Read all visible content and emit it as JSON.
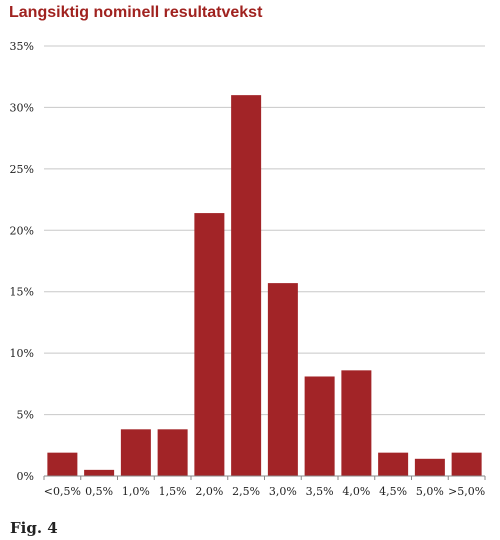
{
  "figure_label": "Fig. 4",
  "colors": {
    "bar": "#a22427",
    "title": "#a0221f",
    "grid": "#c8c8c8",
    "axis": "#888888"
  },
  "chart_data": {
    "type": "bar",
    "title": "Langsiktig nominell resultatvekst",
    "xlabel": "",
    "ylabel": "",
    "categories": [
      "<0,5%",
      "0,5%",
      "1,0%",
      "1,5%",
      "2,0%",
      "2,5%",
      "3,0%",
      "3,5%",
      "4,0%",
      "4,5%",
      "5,0%",
      ">5,0%"
    ],
    "values": [
      1.9,
      0.5,
      3.8,
      3.8,
      21.4,
      31.0,
      15.7,
      8.1,
      8.6,
      1.9,
      1.4,
      1.9
    ],
    "ylim": [
      0,
      35
    ],
    "yticks": [
      0,
      5,
      10,
      15,
      20,
      25,
      30,
      35
    ],
    "ytick_labels": [
      "0%",
      "5%",
      "10%",
      "15%",
      "20%",
      "25%",
      "30%",
      "35%"
    ],
    "grid": true,
    "legend": "none"
  }
}
